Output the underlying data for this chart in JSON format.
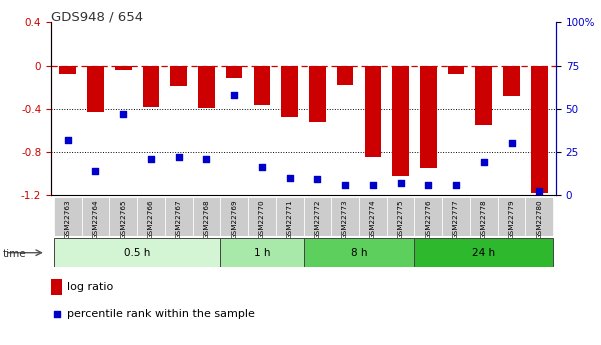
{
  "title": "GDS948 / 654",
  "samples": [
    "GSM22763",
    "GSM22764",
    "GSM22765",
    "GSM22766",
    "GSM22767",
    "GSM22768",
    "GSM22769",
    "GSM22770",
    "GSM22771",
    "GSM22772",
    "GSM22773",
    "GSM22774",
    "GSM22775",
    "GSM22776",
    "GSM22777",
    "GSM22778",
    "GSM22779",
    "GSM22780"
  ],
  "log_ratio": [
    -0.08,
    -0.43,
    -0.04,
    -0.38,
    -0.19,
    -0.39,
    -0.12,
    -0.37,
    -0.48,
    -0.52,
    -0.18,
    -0.85,
    -1.02,
    -0.95,
    -0.08,
    -0.55,
    -0.28,
    -1.18
  ],
  "percentile": [
    32,
    14,
    47,
    21,
    22,
    21,
    58,
    16,
    10,
    9,
    6,
    6,
    7,
    6,
    6,
    19,
    30,
    2
  ],
  "groups": [
    {
      "label": "0.5 h",
      "start": 0,
      "end": 6,
      "color": "#d4f5d4"
    },
    {
      "label": "1 h",
      "start": 6,
      "end": 9,
      "color": "#a8e8a8"
    },
    {
      "label": "8 h",
      "start": 9,
      "end": 13,
      "color": "#5ccf5c"
    },
    {
      "label": "24 h",
      "start": 13,
      "end": 18,
      "color": "#2db82d"
    }
  ],
  "bar_color": "#cc0000",
  "dot_color": "#0000cc",
  "dashed_line_color": "#cc0000",
  "ylim_left": [
    -1.2,
    0.4
  ],
  "ylim_right": [
    0,
    100
  ],
  "yticks_left": [
    -1.2,
    -0.8,
    -0.4,
    0.0,
    0.4
  ],
  "yticks_right": [
    0,
    25,
    50,
    75,
    100
  ],
  "ytick_right_labels": [
    "0",
    "25",
    "50",
    "75",
    "100%"
  ],
  "background_color": "#ffffff",
  "grid_color": "#000000",
  "xlabel_area_color": "#cccccc"
}
